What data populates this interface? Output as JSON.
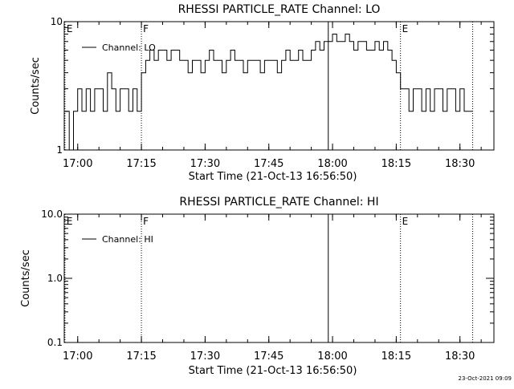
{
  "footer": {
    "timestamp": "23-Oct-2021 09:09"
  },
  "colors": {
    "background": "#ffffff",
    "foreground": "#000000"
  },
  "chart_data": [
    {
      "type": "line",
      "title": "RHESSI PARTICLE_RATE Channel: LO",
      "xlabel": "Start Time (21-Oct-13 16:56:50)",
      "ylabel": "Counts/sec",
      "yscale": "log",
      "ylim": [
        1,
        10
      ],
      "y_ticks": [
        {
          "value": 1,
          "label": "1"
        },
        {
          "value": 10,
          "label": "10"
        }
      ],
      "x_ticks": [
        {
          "value": "17:00",
          "label": "17:00"
        },
        {
          "value": "17:15",
          "label": "17:15"
        },
        {
          "value": "17:30",
          "label": "17:30"
        },
        {
          "value": "17:45",
          "label": "17:45"
        },
        {
          "value": "18:00",
          "label": "18:00"
        },
        {
          "value": "18:15",
          "label": "18:15"
        },
        {
          "value": "18:30",
          "label": "18:30"
        }
      ],
      "xlim": [
        "16:56:50",
        "18:38:00"
      ],
      "legend": {
        "placement": "top-left",
        "entries": [
          "Channel: LO"
        ]
      },
      "markers": [
        {
          "time": "16:57:00",
          "label": "E",
          "style": "dotted"
        },
        {
          "time": "17:15:00",
          "label": "F",
          "style": "dotted"
        },
        {
          "time": "17:59:00",
          "label": "",
          "style": "solid"
        },
        {
          "time": "18:16:00",
          "label": "E",
          "style": "dotted"
        },
        {
          "time": "18:33:00",
          "label": "",
          "style": "dotted"
        }
      ],
      "series": [
        {
          "name": "Channel: LO",
          "x": [
            "16:57",
            "16:58",
            "16:59",
            "17:00",
            "17:01",
            "17:02",
            "17:03",
            "17:04",
            "17:05",
            "17:06",
            "17:07",
            "17:08",
            "17:09",
            "17:10",
            "17:11",
            "17:12",
            "17:13",
            "17:14",
            "17:15",
            "17:16",
            "17:17",
            "17:18",
            "17:19",
            "17:20",
            "17:21",
            "17:22",
            "17:23",
            "17:24",
            "17:25",
            "17:26",
            "17:27",
            "17:28",
            "17:29",
            "17:30",
            "17:31",
            "17:32",
            "17:33",
            "17:34",
            "17:35",
            "17:36",
            "17:37",
            "17:38",
            "17:39",
            "17:40",
            "17:41",
            "17:42",
            "17:43",
            "17:44",
            "17:45",
            "17:46",
            "17:47",
            "17:48",
            "17:49",
            "17:50",
            "17:51",
            "17:52",
            "17:53",
            "17:54",
            "17:55",
            "17:56",
            "17:57",
            "17:58",
            "17:59",
            "18:00",
            "18:01",
            "18:02",
            "18:03",
            "18:04",
            "18:05",
            "18:06",
            "18:07",
            "18:08",
            "18:09",
            "18:10",
            "18:11",
            "18:12",
            "18:13",
            "18:14",
            "18:15",
            "18:16",
            "18:17",
            "18:18",
            "18:19",
            "18:20",
            "18:21",
            "18:22",
            "18:23",
            "18:24",
            "18:25",
            "18:26",
            "18:27",
            "18:28",
            "18:29",
            "18:30",
            "18:31",
            "18:32"
          ],
          "values": [
            2,
            1,
            2,
            3,
            2,
            3,
            2,
            3,
            3,
            2,
            4,
            3,
            2,
            3,
            3,
            2,
            3,
            2,
            4,
            5,
            6,
            5,
            6,
            6,
            5,
            6,
            6,
            5,
            5,
            4,
            5,
            5,
            4,
            5,
            6,
            5,
            5,
            4,
            5,
            6,
            5,
            5,
            4,
            5,
            5,
            5,
            4,
            5,
            5,
            5,
            4,
            5,
            6,
            5,
            5,
            6,
            5,
            5,
            6,
            7,
            6,
            7,
            7,
            8,
            7,
            7,
            8,
            7,
            6,
            7,
            7,
            6,
            6,
            7,
            6,
            7,
            6,
            5,
            4,
            3,
            3,
            2,
            3,
            3,
            2,
            3,
            2,
            3,
            3,
            2,
            3,
            3,
            2,
            3,
            2,
            2
          ]
        }
      ]
    },
    {
      "type": "line",
      "title": "RHESSI PARTICLE_RATE Channel: HI",
      "xlabel": "Start Time (21-Oct-13 16:56:50)",
      "ylabel": "Counts/sec",
      "yscale": "log",
      "ylim": [
        0.1,
        10
      ],
      "y_ticks": [
        {
          "value": 0.1,
          "label": "0.1"
        },
        {
          "value": 1,
          "label": "1.0"
        },
        {
          "value": 10,
          "label": "10.0"
        }
      ],
      "x_ticks": [
        {
          "value": "17:00",
          "label": "17:00"
        },
        {
          "value": "17:15",
          "label": "17:15"
        },
        {
          "value": "17:30",
          "label": "17:30"
        },
        {
          "value": "17:45",
          "label": "17:45"
        },
        {
          "value": "18:00",
          "label": "18:00"
        },
        {
          "value": "18:15",
          "label": "18:15"
        },
        {
          "value": "18:30",
          "label": "18:30"
        }
      ],
      "xlim": [
        "16:56:50",
        "18:38:00"
      ],
      "legend": {
        "placement": "top-left",
        "entries": [
          "Channel: HI"
        ]
      },
      "markers": [
        {
          "time": "16:57:00",
          "label": "E",
          "style": "dotted"
        },
        {
          "time": "17:15:00",
          "label": "F",
          "style": "dotted"
        },
        {
          "time": "17:59:00",
          "label": "",
          "style": "solid"
        },
        {
          "time": "18:16:00",
          "label": "E",
          "style": "dotted"
        },
        {
          "time": "18:33:00",
          "label": "",
          "style": "dotted"
        }
      ],
      "series": [
        {
          "name": "Channel: HI",
          "x": [],
          "values": []
        }
      ]
    }
  ]
}
